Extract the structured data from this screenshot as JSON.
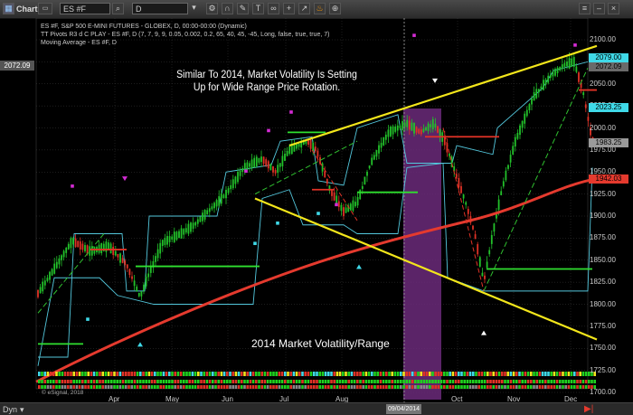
{
  "toolbar": {
    "app_label": "Chart",
    "symbol": "ES #F",
    "interval": "D",
    "icons": [
      "chart-icon",
      "search-icon",
      "dropdown-icon",
      "settings-icon",
      "magnet-icon",
      "draw-icon",
      "text-icon",
      "link-icon",
      "plus-icon",
      "arrow-icon",
      "fire-icon",
      "zoom-icon",
      "grid-icon",
      "layout-icon",
      "lock-icon",
      "menu-icon"
    ]
  },
  "legend": {
    "line1": "ES #F, S&P 500 E-MINI FUTURES - GLOBEX, D, 00:00-00:00 (Dynamic)",
    "line2": "TT Pivots R3 d C PLAY - ES #F, D (7, 7, 9, 9, 0.05, 0.002, 0.2, 65, 40, 45, -45, Long, false, true, true, 7)",
    "line3": "Moving Average - ES #F, D"
  },
  "annotations": {
    "headline_line1": "Similar To 2014, Market Volatility Is Setting",
    "headline_line2": "Up for Wide Range Price Rotation.",
    "footer_caption": "2014 Market Volatility/Range"
  },
  "price_axis": {
    "ticks": [
      "2100.00",
      "2075.00",
      "2050.00",
      "2025.00",
      "2000.00",
      "1975.00",
      "1950.00",
      "1925.00",
      "1900.00",
      "1875.00",
      "1850.00",
      "1825.00",
      "1800.00",
      "1775.00",
      "1750.00",
      "1725.00",
      "1700.00"
    ],
    "left_label": "2072.09",
    "flags": [
      {
        "text": "2079.00",
        "color": "#3fd9e8"
      },
      {
        "text": "2072.09",
        "color": "#6a6a6a"
      },
      {
        "text": "2023.25",
        "color": "#3fd9e8"
      },
      {
        "text": "1983.25",
        "color": "#9a9a9a"
      },
      {
        "text": "1942.03",
        "color": "#e53a2e"
      }
    ]
  },
  "time_axis": {
    "months": [
      "Apr",
      "May",
      "Jun",
      "Jul",
      "Aug",
      "Oct",
      "Nov",
      "Dec"
    ],
    "highlight_date": "09/04/2014",
    "copyright": "© eSignal, 2018"
  },
  "bottom": {
    "period_label": "Dyn",
    "scroll_end_icon": "fast-forward-icon"
  },
  "colors": {
    "background": "#000000",
    "grid": "#3a3a3a",
    "up_candle": "#22c12a",
    "down_candle": "#e03226",
    "moving_average": "#e53a2e",
    "trendline": "#f3e61b",
    "pivot_channel": "#53c7dc",
    "highlight_band": "#6b2a7a"
  }
}
